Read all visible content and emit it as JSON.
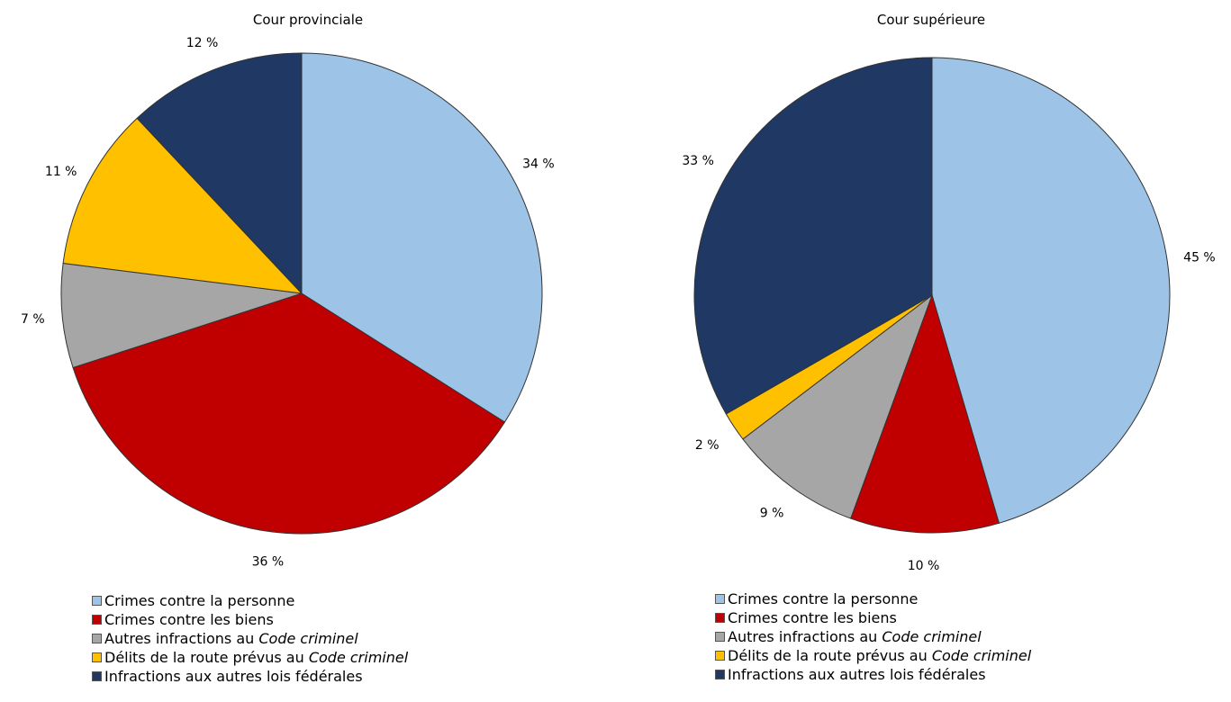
{
  "chart_data": [
    {
      "type": "pie",
      "title": "Cour provinciale",
      "slices": [
        {
          "label": "Crimes contre la personne",
          "value": 34,
          "display": "34 %"
        },
        {
          "label": "Crimes contre les biens",
          "value": 36,
          "display": "36 %"
        },
        {
          "label": "Autres infractions au Code criminel",
          "value": 7,
          "display": "7 %"
        },
        {
          "label": "Délits de la route prévus au Code criminel",
          "value": 11,
          "display": "11 %"
        },
        {
          "label": "Infractions aux autres lois fédérales",
          "value": 12,
          "display": "12 %"
        }
      ]
    },
    {
      "type": "pie",
      "title": "Cour supérieure",
      "slices": [
        {
          "label": "Crimes contre la personne",
          "value": 45,
          "display": "45 %"
        },
        {
          "label": "Crimes contre les biens",
          "value": 10,
          "display": "10 %"
        },
        {
          "label": "Autres infractions au Code criminel",
          "value": 9,
          "display": "9 %"
        },
        {
          "label": "Délits de la route prévus au Code criminel",
          "value": 2,
          "display": "2 %"
        },
        {
          "label": "Infractions aux autres lois fédérales",
          "value": 33,
          "display": "33 %"
        }
      ]
    }
  ],
  "legend": {
    "items": [
      {
        "prefix": "Crimes contre la personne",
        "italic": ""
      },
      {
        "prefix": "Crimes contre les biens",
        "italic": ""
      },
      {
        "prefix": "Autres infractions au ",
        "italic": "Code criminel"
      },
      {
        "prefix": "Délits de la route prévus au ",
        "italic": "Code criminel"
      },
      {
        "prefix": "Infractions aux autres lois fédérales",
        "italic": ""
      }
    ]
  },
  "colors": [
    "#9dc3e6",
    "#c00000",
    "#a6a6a6",
    "#ffc000",
    "#1f3864"
  ]
}
